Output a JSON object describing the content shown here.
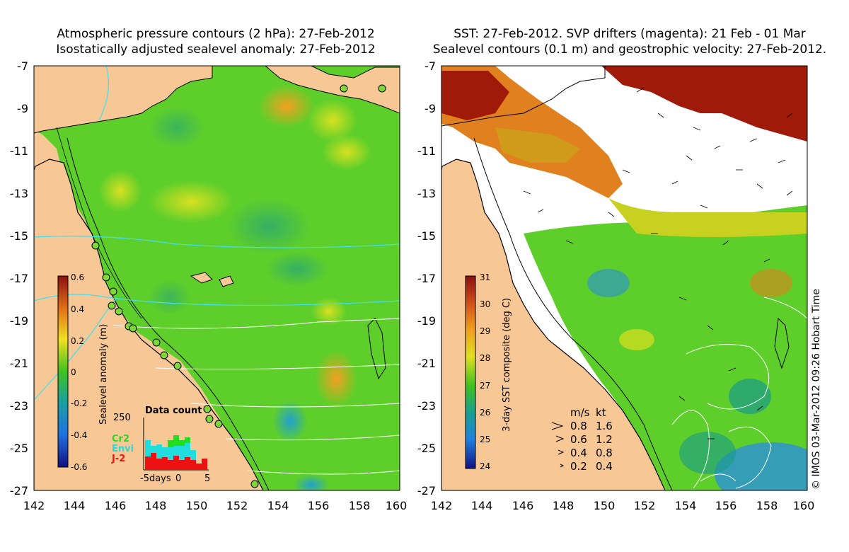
{
  "left_panel": {
    "title_line1": "Atmospheric pressure contours (2 hPa): 27-Feb-2012",
    "title_line2": "Isostatically adjusted sealevel anomaly: 27-Feb-2012",
    "colorbar_label": "Sealevel anomaly (m)",
    "colorbar_ticks": [
      "0.6",
      "0.4",
      "0.2",
      "0",
      "-0.2",
      "-0.4",
      "-0.6"
    ],
    "inset": {
      "title": "Data count",
      "ymax_label": "250",
      "x_labels": [
        "-5days",
        "0",
        "5"
      ],
      "legend": [
        {
          "name": "Cr2",
          "color": "#22dd22"
        },
        {
          "name": "Envi",
          "color": "#22dddd"
        },
        {
          "name": "J-2",
          "color": "#ee1111"
        }
      ]
    }
  },
  "right_panel": {
    "title_line1": "SST: 27-Feb-2012. SVP drifters (magenta): 21 Feb - 01 Mar",
    "title_line2": "Sealevel contours (0.1 m) and geostrophic velocity: 27-Feb-2012.",
    "colorbar_label": "3-day SST composite (deg C)",
    "colorbar_ticks": [
      "31",
      "30",
      "29",
      "28",
      "27",
      "26",
      "25",
      "24"
    ],
    "speed_key": {
      "header_ms": "m/s",
      "header_kt": "kt",
      "rows": [
        {
          "ms": "0.8",
          "kt": "1.6"
        },
        {
          "ms": "0.6",
          "kt": "1.2"
        },
        {
          "ms": "0.4",
          "kt": "0.8"
        },
        {
          "ms": "0.2",
          "kt": "0.4"
        }
      ]
    }
  },
  "axes": {
    "y_labels": [
      "-7",
      "-9",
      "-11",
      "-13",
      "-15",
      "-17",
      "-19",
      "-21",
      "-23",
      "-25",
      "-27"
    ],
    "x_labels": [
      "142",
      "144",
      "146",
      "148",
      "150",
      "152",
      "154",
      "156",
      "158",
      "160"
    ]
  },
  "credit": "© IMOS 03-Mar-2012 09:26 Hobart Time",
  "colors": {
    "land": "#f7c896",
    "ocean_green": "#5ecf2a",
    "sla_low": "#1a9a8a",
    "sla_high": "#f2a020",
    "sst_hot": "#a01a0a",
    "sst_warm": "#e0801e",
    "sst_cool": "#2a90d8"
  }
}
